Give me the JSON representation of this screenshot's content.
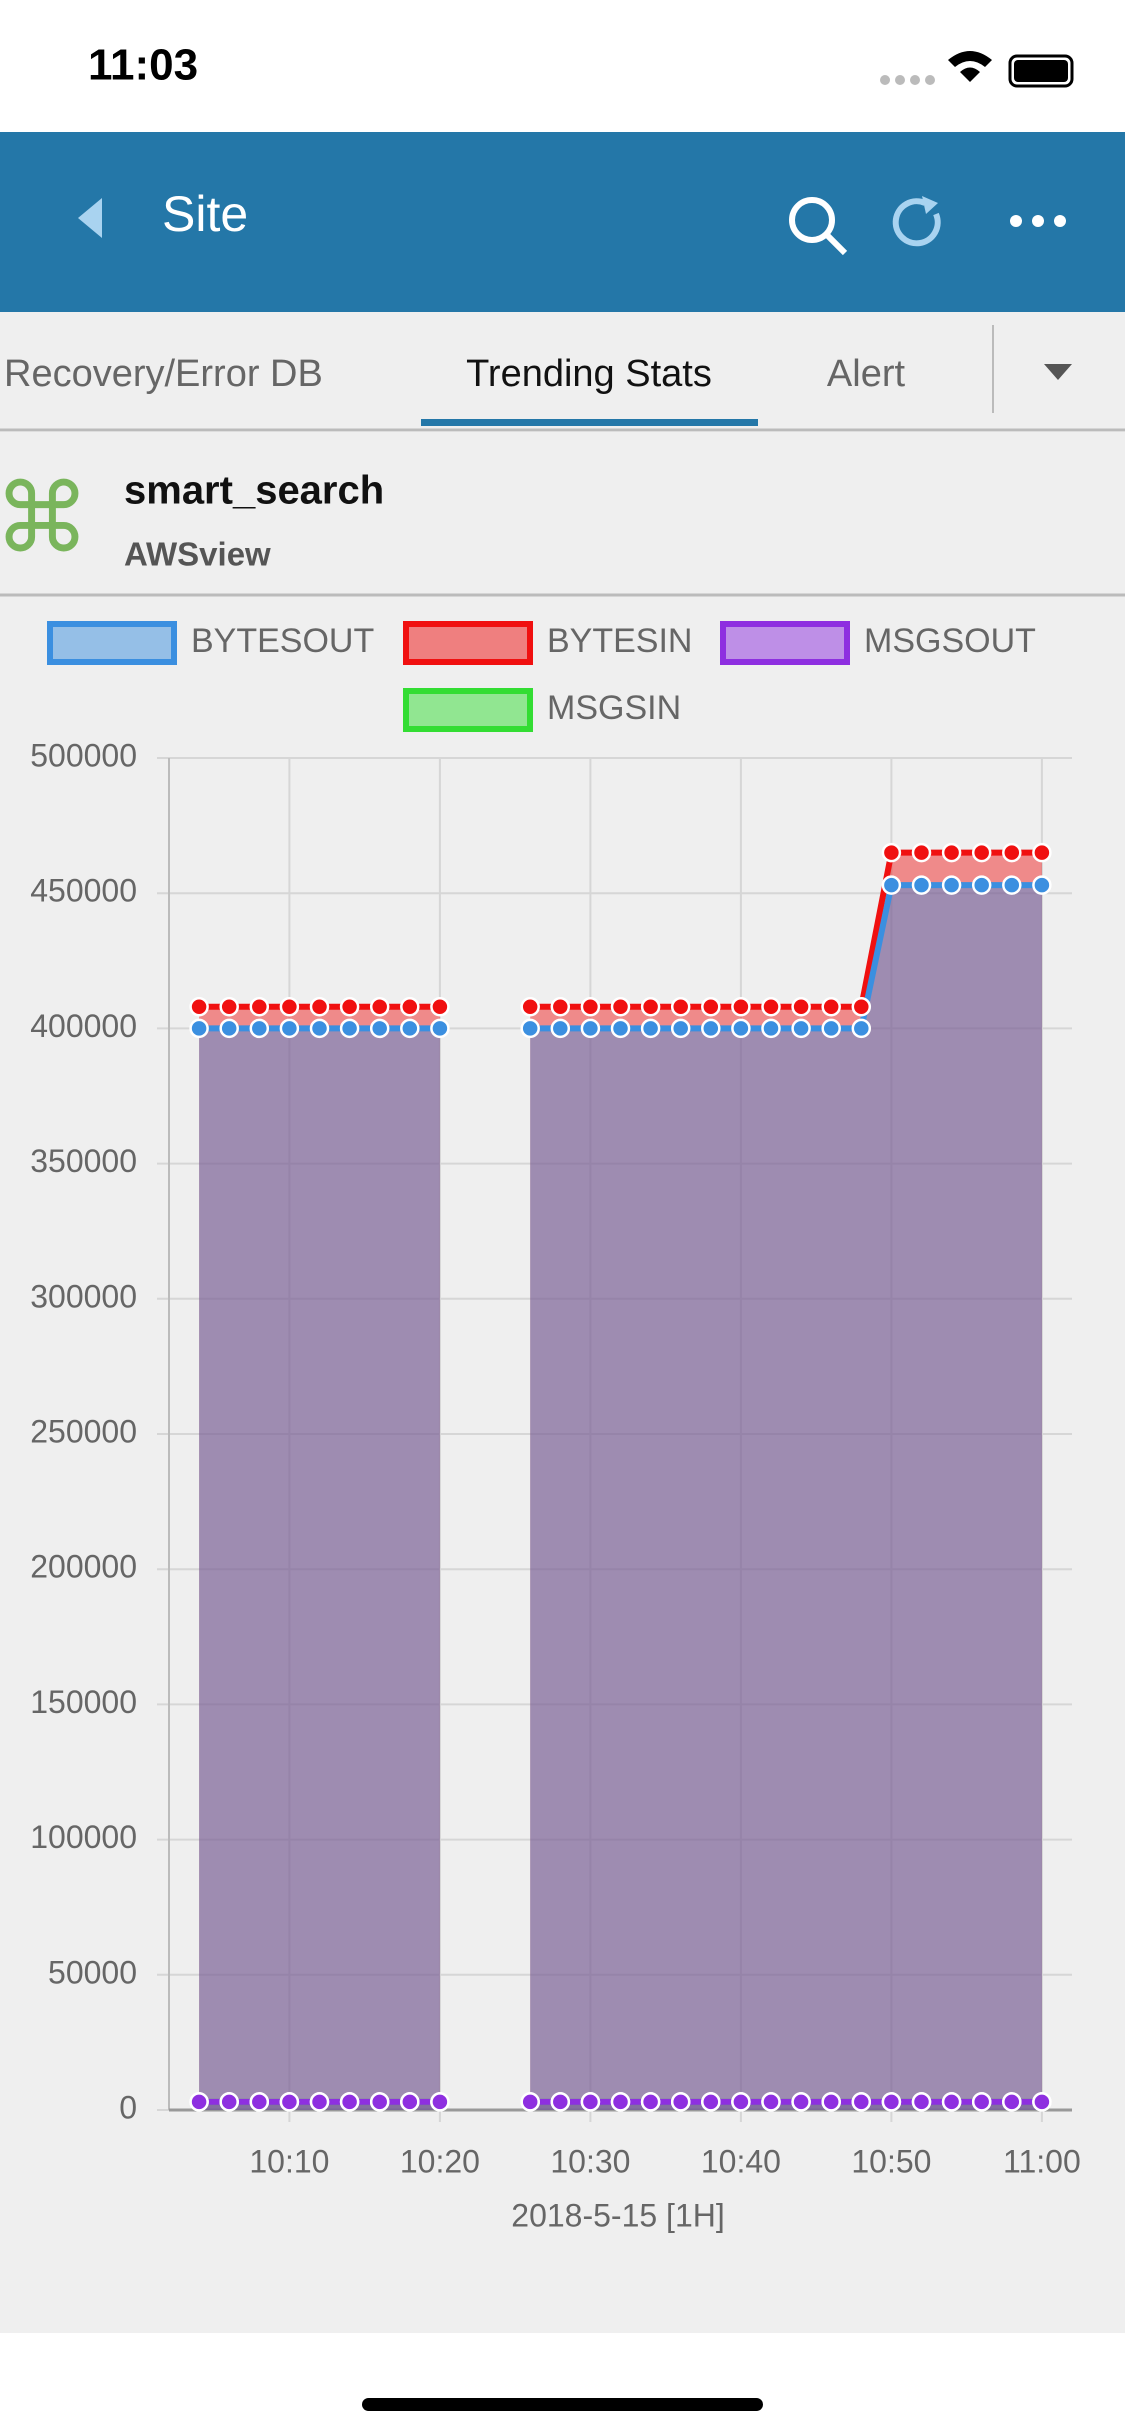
{
  "status_bar": {
    "time": "11:03"
  },
  "nav": {
    "title": "Site"
  },
  "tabs": [
    "Recovery/Error DB",
    "Trending Stats",
    "Alert"
  ],
  "header": {
    "title": "smart_search",
    "subtitle": "AWSview"
  },
  "chart_data": {
    "type": "line",
    "area": true,
    "grid": true,
    "xlabel": "2018-5-15 [1H]",
    "x": [
      "10:04",
      "10:06",
      "10:08",
      "10:10",
      "10:12",
      "10:14",
      "10:16",
      "10:18",
      "10:20",
      "10:22",
      "10:24",
      "10:26",
      "10:28",
      "10:30",
      "10:32",
      "10:34",
      "10:36",
      "10:38",
      "10:40",
      "10:42",
      "10:44",
      "10:46",
      "10:48",
      "10:50",
      "10:52",
      "10:54",
      "10:56",
      "10:58",
      "11:00"
    ],
    "xlim": [
      "10:02",
      "11:02"
    ],
    "xticks": [
      "10:10",
      "10:20",
      "10:30",
      "10:40",
      "10:50",
      "11:00"
    ],
    "ylim": [
      0,
      500000
    ],
    "yticks": [
      0,
      50000,
      100000,
      150000,
      200000,
      250000,
      300000,
      350000,
      400000,
      450000,
      500000
    ],
    "series": [
      {
        "name": "BYTESOUT",
        "color": "#3b8fe0",
        "values": [
          400000,
          400000,
          400000,
          400000,
          400000,
          400000,
          400000,
          400000,
          400000,
          null,
          null,
          400000,
          400000,
          400000,
          400000,
          400000,
          400000,
          400000,
          400000,
          400000,
          400000,
          400000,
          400000,
          453000,
          453000,
          453000,
          453000,
          453000,
          453000
        ]
      },
      {
        "name": "BYTESIN",
        "color": "#f01010",
        "values": [
          408000,
          408000,
          408000,
          408000,
          408000,
          408000,
          408000,
          408000,
          408000,
          null,
          null,
          408000,
          408000,
          408000,
          408000,
          408000,
          408000,
          408000,
          408000,
          408000,
          408000,
          408000,
          408000,
          465000,
          465000,
          465000,
          465000,
          465000,
          465000
        ]
      },
      {
        "name": "MSGSOUT",
        "color": "#8e2fe0",
        "values": [
          3000,
          3000,
          3000,
          3000,
          3000,
          3000,
          3000,
          3000,
          3000,
          null,
          null,
          3000,
          3000,
          3000,
          3000,
          3000,
          3000,
          3000,
          3000,
          3000,
          3000,
          3000,
          3000,
          3000,
          3000,
          3000,
          3000,
          3000,
          3000
        ]
      },
      {
        "name": "MSGSIN",
        "color": "#33dd33",
        "values": [
          3000,
          3000,
          3000,
          3000,
          3000,
          3000,
          3000,
          3000,
          3000,
          null,
          null,
          3000,
          3000,
          3000,
          3000,
          3000,
          3000,
          3000,
          3000,
          3000,
          3000,
          3000,
          3000,
          3000,
          3000,
          3000,
          3000,
          3000,
          3000
        ]
      }
    ]
  }
}
